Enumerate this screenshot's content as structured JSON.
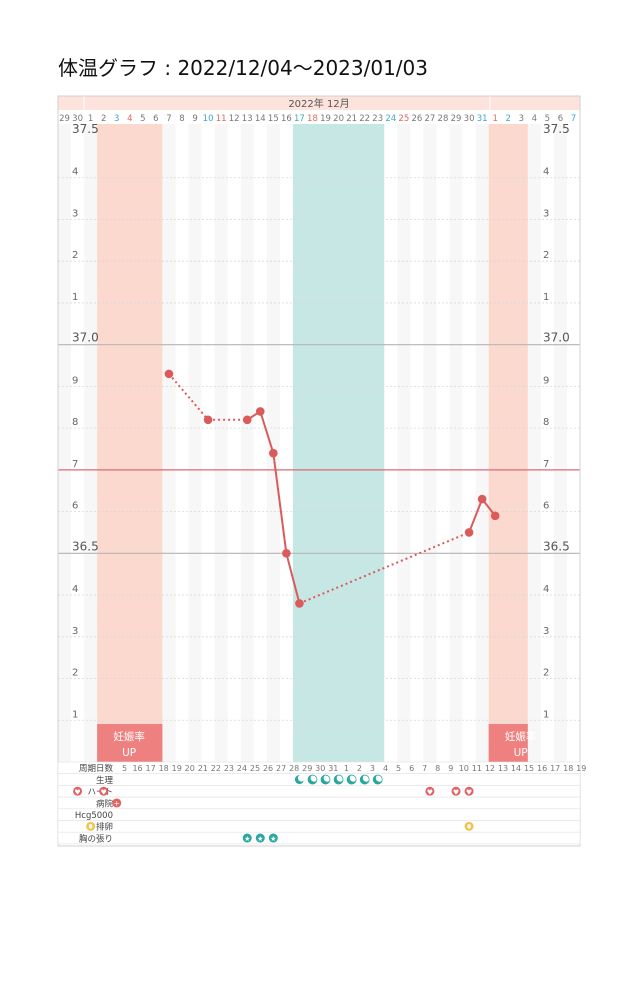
{
  "title": "体温グラフ : 2022/12/04〜2023/01/03",
  "header": {
    "month_label": "2022年 12月"
  },
  "colors": {
    "accent": "#d95b5b",
    "fertile_band": "#fcd9cf",
    "period_band": "#c7e7e4",
    "baseline": "#d96a78",
    "weekday_sat": "#3ea7c8",
    "weekday_sun": "#e06a5a",
    "badge_bg": "#ee8080"
  },
  "chart_data": {
    "type": "line",
    "title": "体温グラフ : 2022/12/04〜2023/01/03",
    "xlabel": "",
    "ylabel": "",
    "ylim": [
      36.0,
      37.5
    ],
    "y_major_labels": [
      "37.5",
      "37.0",
      "36.5"
    ],
    "y_minor_labels": [
      "4",
      "3",
      "2",
      "1",
      "9",
      "8",
      "7",
      "6",
      "4",
      "3",
      "2",
      "1"
    ],
    "baseline": 36.7,
    "date_labels": [
      "29",
      "30",
      "1",
      "2",
      "3",
      "4",
      "5",
      "6",
      "7",
      "8",
      "9",
      "10",
      "11",
      "12",
      "13",
      "14",
      "15",
      "16",
      "17",
      "18",
      "19",
      "20",
      "21",
      "22",
      "23",
      "24",
      "25",
      "26",
      "27",
      "28",
      "29",
      "30",
      "31",
      "1",
      "2",
      "3",
      "4",
      "5",
      "6",
      "7"
    ],
    "date_colors": [
      "n",
      "n",
      "n",
      "n",
      "s",
      "u",
      "n",
      "n",
      "n",
      "n",
      "n",
      "s",
      "u",
      "n",
      "n",
      "n",
      "n",
      "n",
      "s",
      "u",
      "n",
      "n",
      "n",
      "n",
      "n",
      "s",
      "u",
      "n",
      "n",
      "n",
      "n",
      "n",
      "s",
      "u",
      "s",
      "n",
      "n",
      "n",
      "n",
      "s"
    ],
    "cycle_day_labels": [
      "5",
      "16",
      "17",
      "18",
      "19",
      "20",
      "21",
      "22",
      "23",
      "24",
      "25",
      "26",
      "27",
      "28",
      "29",
      "30",
      "31",
      "1",
      "2",
      "3",
      "4",
      "5",
      "6",
      "7",
      "8",
      "9",
      "10",
      "11",
      "12",
      "13",
      "14",
      "15",
      "16",
      "17",
      "18",
      "19"
    ],
    "series": [
      {
        "points": [
          {
            "day": 8,
            "value": 36.93
          },
          {
            "day": 11,
            "value": 36.82
          },
          {
            "day": 14,
            "value": 36.82
          },
          {
            "day": 15,
            "value": 36.84
          },
          {
            "day": 16,
            "value": 36.74
          },
          {
            "day": 17,
            "value": 36.5
          },
          {
            "day": 18,
            "value": 36.38
          },
          {
            "day": 31,
            "value": 36.55
          },
          {
            "day": 32,
            "value": 36.63
          },
          {
            "day": 33,
            "value": 36.59
          }
        ],
        "dashed_segments": [
          [
            0,
            1
          ],
          [
            1,
            2
          ],
          [
            6,
            7
          ]
        ]
      }
    ],
    "bands": [
      {
        "kind": "fertile",
        "from_day": 3,
        "to_day": 8,
        "badge": [
          "妊娠率",
          "UP"
        ]
      },
      {
        "kind": "period",
        "from_day": 18,
        "to_day": 25
      },
      {
        "kind": "fertile",
        "from_day": 33,
        "to_day": 36,
        "badge": [
          "妊娠率",
          "UP"
        ]
      }
    ],
    "rows": [
      {
        "label": "周期日数"
      },
      {
        "label": "生理",
        "marks": [
          {
            "day": 18,
            "icon": "moon-filled"
          },
          {
            "day": 19,
            "icon": "moon"
          },
          {
            "day": 20,
            "icon": "moon"
          },
          {
            "day": 21,
            "icon": "moon"
          },
          {
            "day": 22,
            "icon": "moon"
          },
          {
            "day": 23,
            "icon": "moon"
          },
          {
            "day": 24,
            "icon": "moon"
          }
        ]
      },
      {
        "label": "ハート",
        "marks": [
          {
            "day": 1,
            "icon": "heart"
          },
          {
            "day": 3,
            "icon": "heart"
          },
          {
            "day": 28,
            "icon": "heart"
          },
          {
            "day": 30,
            "icon": "heart"
          },
          {
            "day": 31,
            "icon": "heart"
          }
        ]
      },
      {
        "label": "病院",
        "marks": [
          {
            "day": 4,
            "icon": "cross"
          }
        ]
      },
      {
        "label": "Hcg5000"
      },
      {
        "label": "排卵",
        "marks": [
          {
            "day": 2,
            "icon": "egg"
          },
          {
            "day": 31,
            "icon": "egg"
          }
        ]
      },
      {
        "label": "胸の張り",
        "marks": [
          {
            "day": 14,
            "icon": "star"
          },
          {
            "day": 15,
            "icon": "star"
          },
          {
            "day": 16,
            "icon": "star"
          }
        ]
      }
    ]
  }
}
